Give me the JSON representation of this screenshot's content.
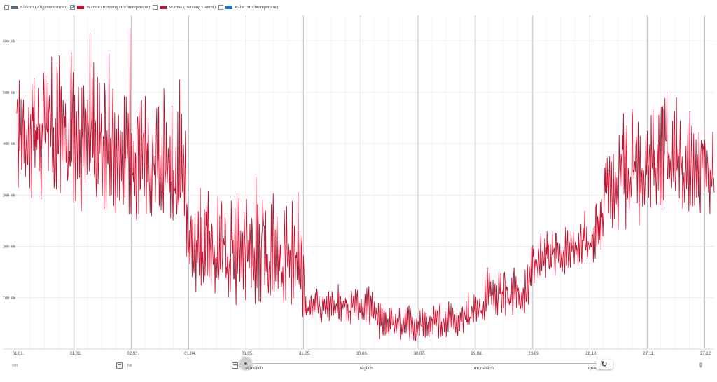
{
  "legend": [
    {
      "label": "Elektro (Allgemeinstrom)",
      "color": "#5b6b7c",
      "checked": false
    },
    {
      "label": "Wärme (Heizung Hochtemperatur)",
      "color": "#c8102e",
      "checked": true
    },
    {
      "label": "Wärme (Heizung Dampf)",
      "color": "#a3213a",
      "checked": false
    },
    {
      "label": "Kälte (Hochtemperatur)",
      "color": "#1e72c4",
      "checked": false
    }
  ],
  "controls": {
    "from_label": "von",
    "to_label": "bis",
    "resolutions": [
      "stündlich",
      "täglich",
      "monatlich",
      "quar"
    ],
    "reset_icon": "reset-icon",
    "pen_icon": "pen-icon"
  },
  "chart_data": {
    "type": "line",
    "series_name": "Wärme (Heizung Hochtemperatur)",
    "color": "#c8102e",
    "y_unit": "kW",
    "yticks": [
      100,
      200,
      300,
      400,
      500,
      600
    ],
    "ytick_labels": [
      "100 kW",
      "200 kW",
      "300 kW",
      "400 kW",
      "500 kW",
      "600 kW"
    ],
    "ylim": [
      0,
      650
    ],
    "x_range_days": [
      0,
      365
    ],
    "xticks": [
      {
        "label": "01.01.",
        "day": 0
      },
      {
        "label": "31.01.",
        "day": 30
      },
      {
        "label": "02.03.",
        "day": 60
      },
      {
        "label": "01.04.",
        "day": 90
      },
      {
        "label": "01.05.",
        "day": 120
      },
      {
        "label": "31.05.",
        "day": 150
      },
      {
        "label": "30.06.",
        "day": 180
      },
      {
        "label": "30.07.",
        "day": 210
      },
      {
        "label": "29.08.",
        "day": 240
      },
      {
        "label": "28.09.",
        "day": 270
      },
      {
        "label": "28.10.",
        "day": 300
      },
      {
        "label": "27.11.",
        "day": 330
      },
      {
        "label": "27.12.",
        "day": 360
      }
    ],
    "daily_profile": [
      {
        "day": 0,
        "low": 280,
        "high": 560
      },
      {
        "day": 15,
        "low": 300,
        "high": 580
      },
      {
        "day": 30,
        "low": 280,
        "high": 560
      },
      {
        "day": 45,
        "low": 270,
        "high": 540
      },
      {
        "day": 60,
        "low": 250,
        "high": 520
      },
      {
        "day": 75,
        "low": 230,
        "high": 480
      },
      {
        "day": 88,
        "low": 210,
        "high": 460
      },
      {
        "day": 90,
        "low": 120,
        "high": 300
      },
      {
        "day": 105,
        "low": 100,
        "high": 300
      },
      {
        "day": 120,
        "low": 90,
        "high": 310
      },
      {
        "day": 135,
        "low": 90,
        "high": 300
      },
      {
        "day": 149,
        "low": 80,
        "high": 300
      },
      {
        "day": 151,
        "low": 50,
        "high": 120
      },
      {
        "day": 165,
        "low": 45,
        "high": 125
      },
      {
        "day": 180,
        "low": 45,
        "high": 125
      },
      {
        "day": 188,
        "low": 40,
        "high": 120
      },
      {
        "day": 190,
        "low": 20,
        "high": 90
      },
      {
        "day": 210,
        "low": 15,
        "high": 85
      },
      {
        "day": 230,
        "low": 25,
        "high": 90
      },
      {
        "day": 243,
        "low": 40,
        "high": 110
      },
      {
        "day": 245,
        "low": 60,
        "high": 160
      },
      {
        "day": 268,
        "low": 60,
        "high": 170
      },
      {
        "day": 270,
        "low": 130,
        "high": 220
      },
      {
        "day": 300,
        "low": 160,
        "high": 260
      },
      {
        "day": 305,
        "low": 180,
        "high": 300
      },
      {
        "day": 308,
        "low": 220,
        "high": 420
      },
      {
        "day": 330,
        "low": 250,
        "high": 470
      },
      {
        "day": 340,
        "low": 280,
        "high": 520
      },
      {
        "day": 350,
        "low": 260,
        "high": 460
      },
      {
        "day": 365,
        "low": 260,
        "high": 440
      }
    ]
  }
}
